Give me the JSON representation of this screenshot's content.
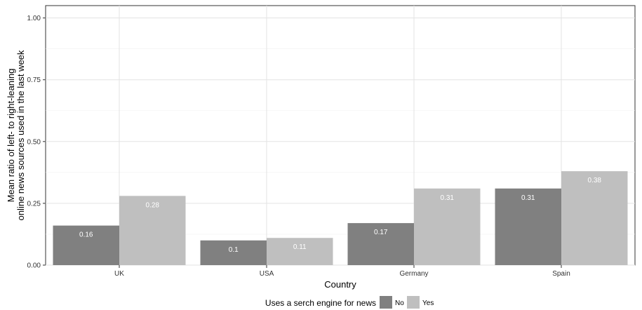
{
  "chart_data": {
    "type": "bar",
    "title": "",
    "xlabel": "Country",
    "ylabel_lines": [
      "Mean ratio of left- to right-leaning",
      "online news sources used in the last week"
    ],
    "categories": [
      "UK",
      "USA",
      "Germany",
      "Spain"
    ],
    "series": [
      {
        "name": "No",
        "values": [
          0.16,
          0.1,
          0.17,
          0.31
        ],
        "labels": [
          "0.16",
          "0.1",
          "0.17",
          "0.31"
        ],
        "color": "#808080"
      },
      {
        "name": "Yes",
        "values": [
          0.28,
          0.11,
          0.31,
          0.38
        ],
        "labels": [
          "0.28",
          "0.11",
          "0.31",
          "0.38"
        ],
        "color": "#bfbfbf"
      }
    ],
    "yticks": [
      0,
      0.25,
      0.5,
      0.75,
      1.0
    ],
    "ytick_labels": [
      "0.00",
      "0.25",
      "0.50",
      "0.75",
      "1.00"
    ],
    "ylim": [
      0,
      1.05
    ],
    "grid": true,
    "legend": {
      "title": "Uses a serch engine for news",
      "position": "bottom"
    }
  }
}
